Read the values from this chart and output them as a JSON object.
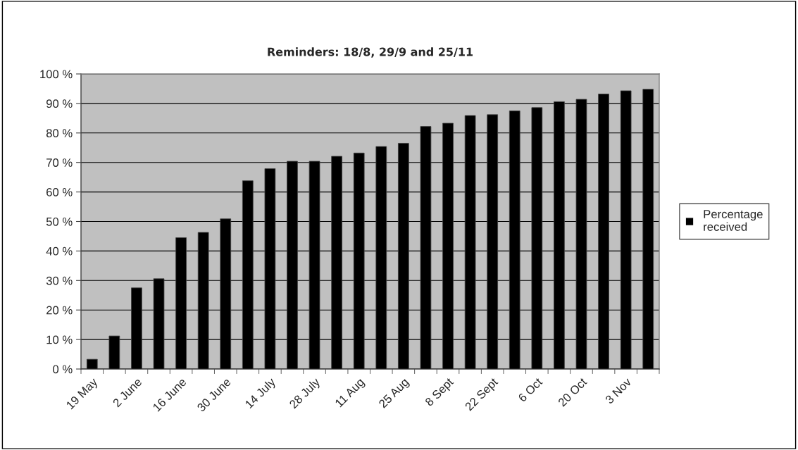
{
  "chart_data": {
    "type": "bar",
    "title": "Reminders: 18/8, 29/9 and 25/11",
    "categories": [
      "19 May",
      null,
      "2 June",
      null,
      "16 June",
      null,
      "30 June",
      null,
      "14 July",
      null,
      "28 July",
      null,
      "11 Aug",
      null,
      "25 Aug",
      null,
      "8 Sept",
      null,
      "22 Sept",
      null,
      "6 Oct",
      null,
      "20 Oct",
      null,
      "3 Nov",
      null
    ],
    "series": [
      {
        "name": "Percentage\nreceived",
        "color": "#000000",
        "values": [
          3.3,
          11.2,
          27.5,
          30.6,
          44.5,
          46.3,
          50.9,
          63.8,
          67.9,
          70.4,
          70.4,
          72.1,
          73.2,
          75.4,
          76.5,
          82.2,
          83.3,
          85.9,
          86.2,
          87.5,
          88.6,
          90.6,
          91.4,
          93.2,
          94.3,
          94.8
        ]
      }
    ],
    "ylim": [
      0,
      100
    ],
    "yticks": [
      {
        "value": 0,
        "label": "0 %"
      },
      {
        "value": 10,
        "label": "10 %"
      },
      {
        "value": 20,
        "label": "20 %"
      },
      {
        "value": 30,
        "label": "30 %"
      },
      {
        "value": 40,
        "label": "40 %"
      },
      {
        "value": 50,
        "label": "50 %"
      },
      {
        "value": 60,
        "label": "60 %"
      },
      {
        "value": 70,
        "label": "70 %"
      },
      {
        "value": 80,
        "label": "80 %"
      },
      {
        "value": 90,
        "label": "90 %"
      },
      {
        "value": 100,
        "label": "100 %"
      }
    ],
    "grid": "y",
    "legend": "right"
  }
}
